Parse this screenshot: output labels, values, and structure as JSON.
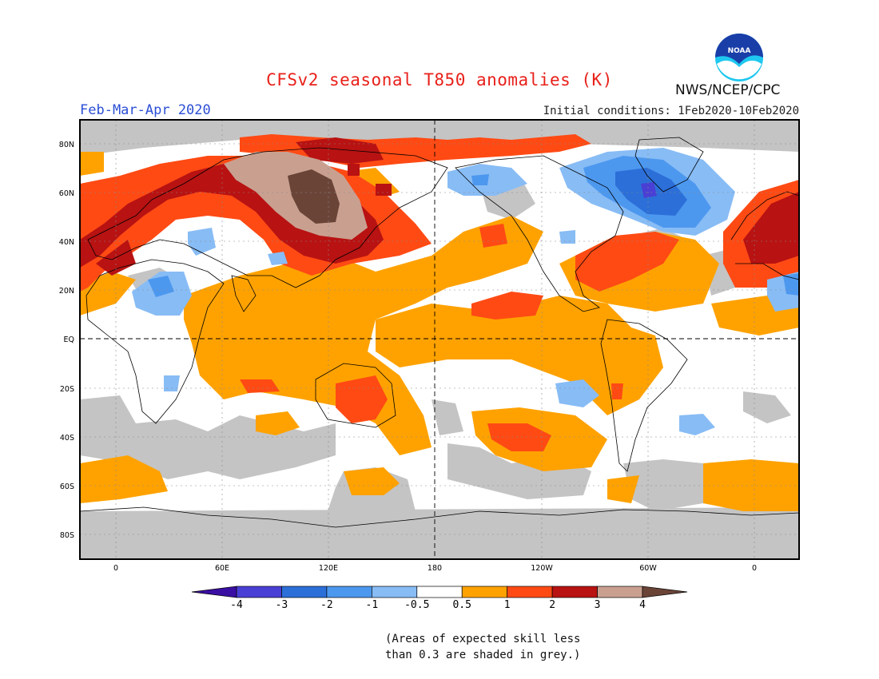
{
  "header": {
    "title": "CFSv2 seasonal T850 anomalies (K)",
    "season": "Feb-Mar-Apr 2020",
    "initial_conditions": "Initial conditions: 1Feb2020-10Feb2020",
    "agency": "NWS/NCEP/CPC",
    "logo_text": "NOAA"
  },
  "axes": {
    "lat_labels": [
      "80N",
      "60N",
      "40N",
      "20N",
      "EQ",
      "20S",
      "40S",
      "60S",
      "80S"
    ],
    "lon_labels": [
      "0",
      "60E",
      "120E",
      "180",
      "120W",
      "60W",
      "0"
    ]
  },
  "legend": {
    "tick_labels": [
      "-4",
      "-3",
      "-2",
      "-1",
      "-0.5",
      "0.5",
      "1",
      "2",
      "3",
      "4"
    ],
    "colors": [
      "#3a0fa3",
      "#4a3fd4",
      "#2c6fd8",
      "#4d98ef",
      "#88bcf5",
      "#ffffff",
      "#ffa200",
      "#ff4a14",
      "#b81212",
      "#c9a090",
      "#6b4438"
    ]
  },
  "footnote": {
    "line1": "(Areas of expected skill less",
    "line2": "than 0.3 are shaded in grey.)"
  },
  "colors": {
    "skill_grey": "#c4c4c4",
    "title_red": "#e8201a",
    "season_blue": "#2b4fd6"
  }
}
